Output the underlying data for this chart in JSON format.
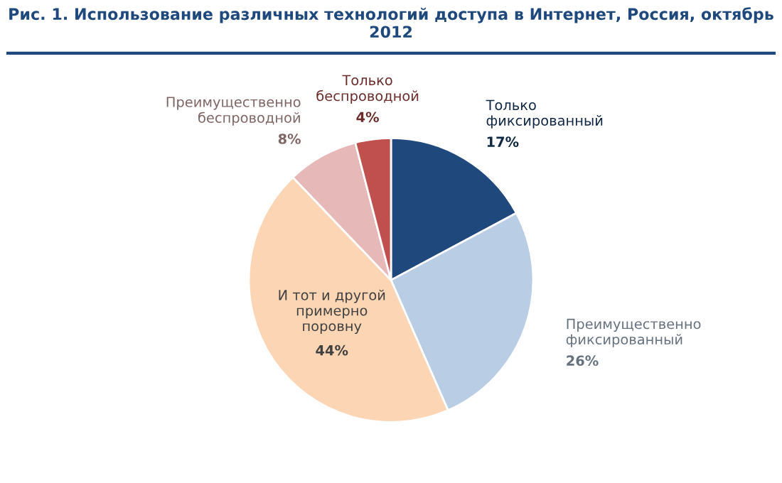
{
  "chart_data": {
    "type": "pie",
    "title": "Рис. 1. Использование различных технологий доступа в Интернет, Россия, октябрь 2012",
    "categories": [
      "Только\nфиксированный",
      "Преимущественно\nфиксированный",
      "И тот и другой\nпримерно\nпоровну",
      "Преимущественно\nбеспроводной",
      "Только\nбеспроводной"
    ],
    "values": [
      17,
      26,
      44,
      8,
      4
    ],
    "colors": [
      "#1f497d",
      "#b9cde5",
      "#fcd5b5",
      "#e6b9b8",
      "#c0504d"
    ],
    "value_labels": [
      "17%",
      "26%",
      "44%",
      "8%",
      "4%"
    ]
  }
}
